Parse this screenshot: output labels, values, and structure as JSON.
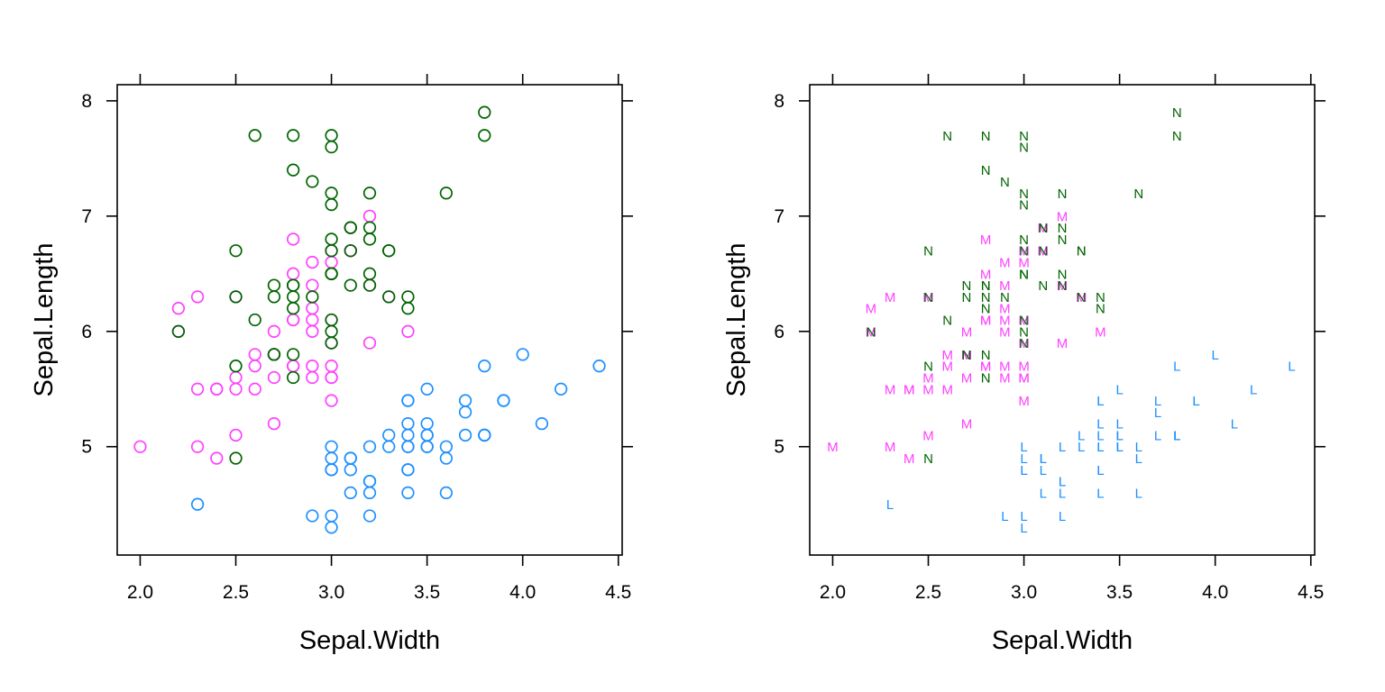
{
  "chart_data": [
    {
      "type": "scatter",
      "marker": "circle",
      "xlabel": "Sepal.Width",
      "ylabel": "Sepal.Length",
      "xlim": [
        1.88,
        4.52
      ],
      "ylim": [
        4.06,
        8.14
      ],
      "xticks": [
        "2.0",
        "2.5",
        "3.0",
        "3.5",
        "4.0",
        "4.5"
      ],
      "yticks": [
        "5",
        "6",
        "7",
        "8"
      ],
      "series": [
        {
          "name": "L",
          "color": "#1E90FF",
          "points": [
            [
              5.1,
              3.5
            ],
            [
              4.9,
              3.0
            ],
            [
              4.7,
              3.2
            ],
            [
              4.6,
              3.1
            ],
            [
              5.0,
              3.6
            ],
            [
              5.4,
              3.9
            ],
            [
              4.6,
              3.4
            ],
            [
              5.0,
              3.4
            ],
            [
              4.4,
              2.9
            ],
            [
              4.9,
              3.1
            ],
            [
              5.4,
              3.7
            ],
            [
              4.8,
              3.4
            ],
            [
              4.8,
              3.0
            ],
            [
              4.3,
              3.0
            ],
            [
              5.8,
              4.0
            ],
            [
              5.7,
              4.4
            ],
            [
              5.4,
              3.9
            ],
            [
              5.1,
              3.5
            ],
            [
              5.7,
              3.8
            ],
            [
              5.1,
              3.8
            ],
            [
              5.4,
              3.4
            ],
            [
              5.1,
              3.7
            ],
            [
              4.6,
              3.6
            ],
            [
              5.1,
              3.3
            ],
            [
              4.8,
              3.4
            ],
            [
              5.0,
              3.0
            ],
            [
              5.0,
              3.4
            ],
            [
              5.2,
              3.5
            ],
            [
              5.2,
              3.4
            ],
            [
              4.7,
              3.2
            ],
            [
              4.8,
              3.1
            ],
            [
              5.4,
              3.4
            ],
            [
              5.2,
              4.1
            ],
            [
              5.5,
              4.2
            ],
            [
              4.9,
              3.1
            ],
            [
              5.0,
              3.2
            ],
            [
              5.5,
              3.5
            ],
            [
              4.9,
              3.6
            ],
            [
              4.4,
              3.0
            ],
            [
              5.1,
              3.4
            ],
            [
              5.0,
              3.5
            ],
            [
              4.5,
              2.3
            ],
            [
              4.4,
              3.2
            ],
            [
              5.0,
              3.5
            ],
            [
              5.1,
              3.8
            ],
            [
              4.8,
              3.0
            ],
            [
              5.1,
              3.8
            ],
            [
              4.6,
              3.2
            ],
            [
              5.3,
              3.7
            ],
            [
              5.0,
              3.3
            ]
          ]
        },
        {
          "name": "M",
          "color": "#FF40FF",
          "points": [
            [
              7.0,
              3.2
            ],
            [
              6.4,
              3.2
            ],
            [
              6.9,
              3.1
            ],
            [
              5.5,
              2.3
            ],
            [
              6.5,
              2.8
            ],
            [
              5.7,
              2.8
            ],
            [
              6.3,
              3.3
            ],
            [
              4.9,
              2.4
            ],
            [
              6.6,
              2.9
            ],
            [
              5.2,
              2.7
            ],
            [
              5.0,
              2.0
            ],
            [
              5.9,
              3.0
            ],
            [
              6.0,
              2.2
            ],
            [
              6.1,
              2.9
            ],
            [
              5.6,
              2.9
            ],
            [
              6.7,
              3.1
            ],
            [
              5.6,
              3.0
            ],
            [
              5.8,
              2.7
            ],
            [
              6.2,
              2.2
            ],
            [
              5.6,
              2.5
            ],
            [
              5.9,
              3.2
            ],
            [
              6.1,
              2.8
            ],
            [
              6.3,
              2.5
            ],
            [
              6.1,
              2.8
            ],
            [
              6.4,
              2.9
            ],
            [
              6.6,
              3.0
            ],
            [
              6.8,
              2.8
            ],
            [
              6.7,
              3.0
            ],
            [
              6.0,
              2.9
            ],
            [
              5.7,
              2.6
            ],
            [
              5.5,
              2.4
            ],
            [
              5.5,
              2.4
            ],
            [
              5.8,
              2.7
            ],
            [
              6.0,
              2.7
            ],
            [
              5.4,
              3.0
            ],
            [
              6.0,
              3.4
            ],
            [
              6.7,
              3.1
            ],
            [
              6.3,
              2.3
            ],
            [
              5.6,
              3.0
            ],
            [
              5.5,
              2.5
            ],
            [
              5.5,
              2.6
            ],
            [
              6.1,
              3.0
            ],
            [
              5.8,
              2.6
            ],
            [
              5.0,
              2.3
            ],
            [
              5.6,
              2.7
            ],
            [
              5.7,
              3.0
            ],
            [
              5.7,
              2.9
            ],
            [
              6.2,
              2.9
            ],
            [
              5.1,
              2.5
            ],
            [
              5.7,
              2.8
            ]
          ]
        },
        {
          "name": "N",
          "color": "#006400",
          "points": [
            [
              6.3,
              3.3
            ],
            [
              5.8,
              2.7
            ],
            [
              7.1,
              3.0
            ],
            [
              6.3,
              2.9
            ],
            [
              6.5,
              3.0
            ],
            [
              7.6,
              3.0
            ],
            [
              4.9,
              2.5
            ],
            [
              7.3,
              2.9
            ],
            [
              6.7,
              2.5
            ],
            [
              7.2,
              3.6
            ],
            [
              6.5,
              3.2
            ],
            [
              6.4,
              2.7
            ],
            [
              6.8,
              3.0
            ],
            [
              5.7,
              2.5
            ],
            [
              5.8,
              2.8
            ],
            [
              6.4,
              3.2
            ],
            [
              6.5,
              3.0
            ],
            [
              7.7,
              3.8
            ],
            [
              7.7,
              2.6
            ],
            [
              6.0,
              2.2
            ],
            [
              6.9,
              3.2
            ],
            [
              5.6,
              2.8
            ],
            [
              7.7,
              2.8
            ],
            [
              6.3,
              2.7
            ],
            [
              6.7,
              3.3
            ],
            [
              7.2,
              3.2
            ],
            [
              6.2,
              2.8
            ],
            [
              6.1,
              3.0
            ],
            [
              6.4,
              2.8
            ],
            [
              7.2,
              3.0
            ],
            [
              7.4,
              2.8
            ],
            [
              7.9,
              3.8
            ],
            [
              6.4,
              2.8
            ],
            [
              6.3,
              2.8
            ],
            [
              6.1,
              2.6
            ],
            [
              7.7,
              3.0
            ],
            [
              6.3,
              3.4
            ],
            [
              6.4,
              3.1
            ],
            [
              6.0,
              3.0
            ],
            [
              6.9,
              3.1
            ],
            [
              6.7,
              3.1
            ],
            [
              6.9,
              3.1
            ],
            [
              5.8,
              2.7
            ],
            [
              6.8,
              3.2
            ],
            [
              6.7,
              3.3
            ],
            [
              6.7,
              3.0
            ],
            [
              6.3,
              2.5
            ],
            [
              6.5,
              3.0
            ],
            [
              6.2,
              3.4
            ],
            [
              5.9,
              3.0
            ]
          ]
        }
      ]
    },
    {
      "type": "scatter",
      "marker": "letter",
      "xlabel": "Sepal.Width",
      "ylabel": "Sepal.Length",
      "xlim": [
        1.88,
        4.52
      ],
      "ylim": [
        4.06,
        8.14
      ],
      "xticks": [
        "2.0",
        "2.5",
        "3.0",
        "3.5",
        "4.0",
        "4.5"
      ],
      "yticks": [
        "5",
        "6",
        "7",
        "8"
      ],
      "series_from_panel": 0
    }
  ]
}
